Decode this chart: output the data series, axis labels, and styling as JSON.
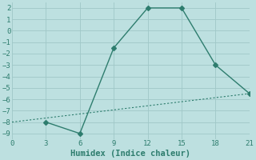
{
  "line1_x": [
    3,
    6,
    9,
    12,
    15,
    18,
    21
  ],
  "line1_y": [
    -8,
    -9,
    -1.5,
    2,
    2,
    -3,
    -5.5
  ],
  "line2_x": [
    0,
    21
  ],
  "line2_y": [
    -8,
    -5.5
  ],
  "color": "#2e7d6e",
  "bg_color": "#bde0e0",
  "grid_color": "#a0c8c8",
  "xlabel": "Humidex (Indice chaleur)",
  "xlim": [
    0,
    21
  ],
  "ylim": [
    -9.5,
    2.5
  ],
  "xticks": [
    0,
    3,
    6,
    9,
    12,
    15,
    18,
    21
  ],
  "yticks": [
    -9,
    -8,
    -7,
    -6,
    -5,
    -4,
    -3,
    -2,
    -1,
    0,
    1,
    2
  ],
  "marker": "D",
  "markersize": 3,
  "linewidth": 1.0,
  "tick_fontsize": 6.5,
  "xlabel_fontsize": 7.5
}
